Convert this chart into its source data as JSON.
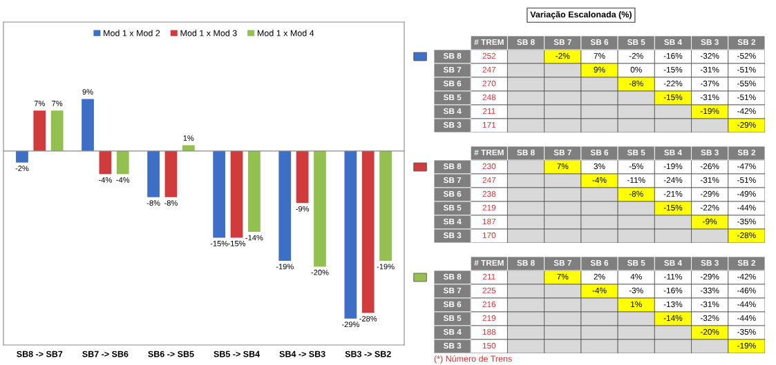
{
  "chart_data": [
    {
      "type": "bar",
      "categories": [
        "SB8 -> SB7",
        "SB7 -> SB6",
        "SB6 -> SB5",
        "SB5 -> SB4",
        "SB4 -> SB3",
        "SB3 -> SB2"
      ],
      "legend": "top",
      "series": [
        {
          "name": "Mod 1 x Mod 2",
          "color": "#3d6fc6",
          "values": [
            -2,
            9,
            -8,
            -15,
            -19,
            -29
          ],
          "value_labels": [
            "-2%",
            "9%",
            "-8%",
            "-15%",
            "-19%",
            "-29%"
          ]
        },
        {
          "name": "Mod 1 x Mod 3",
          "color": "#d13b3b",
          "values": [
            7,
            -4,
            -8,
            -15,
            -9,
            -28
          ],
          "value_labels": [
            "7%",
            "-4%",
            "-8%",
            "-15%",
            "-9%",
            "-28%"
          ]
        },
        {
          "name": "Mod 1 x Mod 4",
          "color": "#93c04f",
          "values": [
            7,
            -4,
            1,
            -14,
            -20,
            -19
          ],
          "value_labels": [
            "7%",
            "-4%",
            "1%",
            "-14%",
            "-20%",
            "-19%"
          ]
        }
      ]
    },
    {
      "type": "heatmap",
      "title": "Variação Escalonada (%)",
      "categories": [
        "# TREM",
        "SB 8",
        "SB 7",
        "SB 6",
        "SB 5",
        "SB 4",
        "SB 3",
        "SB 2"
      ],
      "y_categories": [
        "SB 8",
        "SB 7",
        "SB 6",
        "SB 5",
        "SB 4",
        "SB 3"
      ],
      "cells": [
        [
          252,
          null,
          -2,
          7,
          -2,
          -16,
          -32,
          -52
        ],
        [
          247,
          null,
          null,
          9,
          0,
          -15,
          -31,
          -51
        ],
        [
          270,
          null,
          null,
          null,
          -8,
          -22,
          -37,
          -55
        ],
        [
          248,
          null,
          null,
          null,
          null,
          -15,
          -31,
          -51
        ],
        [
          211,
          null,
          null,
          null,
          null,
          null,
          -19,
          -42
        ],
        [
          171,
          null,
          null,
          null,
          null,
          null,
          null,
          -29
        ]
      ],
      "cell_labels": [
        [
          "252",
          null,
          "-2%",
          "7%",
          "-2%",
          "-16%",
          "-32%",
          "-52%"
        ],
        [
          "247",
          null,
          null,
          "9%",
          "0%",
          "-15%",
          "-31%",
          "-51%"
        ],
        [
          "270",
          null,
          null,
          null,
          "-8%",
          "-22%",
          "-37%",
          "-55%"
        ],
        [
          "248",
          null,
          null,
          null,
          null,
          "-15%",
          "-31%",
          "-51%"
        ],
        [
          "211",
          null,
          null,
          null,
          null,
          null,
          "-19%",
          "-42%"
        ],
        [
          "171",
          null,
          null,
          null,
          null,
          null,
          null,
          "-29%"
        ]
      ]
    },
    {
      "type": "heatmap",
      "categories": [
        "# TREM",
        "SB 8",
        "SB 7",
        "SB 6",
        "SB 5",
        "SB 4",
        "SB 3",
        "SB 2"
      ],
      "y_categories": [
        "SB 8",
        "SB 7",
        "SB 6",
        "SB 5",
        "SB 4",
        "SB 3"
      ],
      "cells": [
        [
          230,
          null,
          7,
          3,
          -5,
          -19,
          -26,
          -47
        ],
        [
          247,
          null,
          null,
          -4,
          -11,
          -24,
          -31,
          -51
        ],
        [
          238,
          null,
          null,
          null,
          -8,
          -21,
          -29,
          -49
        ],
        [
          219,
          null,
          null,
          null,
          null,
          -15,
          -22,
          -44
        ],
        [
          187,
          null,
          null,
          null,
          null,
          null,
          -9,
          -35
        ],
        [
          170,
          null,
          null,
          null,
          null,
          null,
          null,
          -28
        ]
      ],
      "cell_labels": [
        [
          "230",
          null,
          "7%",
          "3%",
          "-5%",
          "-19%",
          "-26%",
          "-47%"
        ],
        [
          "247",
          null,
          null,
          "-4%",
          "-11%",
          "-24%",
          "-31%",
          "-51%"
        ],
        [
          "238",
          null,
          null,
          null,
          "-8%",
          "-21%",
          "-29%",
          "-49%"
        ],
        [
          "219",
          null,
          null,
          null,
          null,
          "-15%",
          "-22%",
          "-44%"
        ],
        [
          "187",
          null,
          null,
          null,
          null,
          null,
          "-9%",
          "-35%"
        ],
        [
          "170",
          null,
          null,
          null,
          null,
          null,
          null,
          "-28%"
        ]
      ]
    },
    {
      "type": "heatmap",
      "categories": [
        "# TREM",
        "SB 8",
        "SB 7",
        "SB 6",
        "SB 5",
        "SB 4",
        "SB 3",
        "SB 2"
      ],
      "y_categories": [
        "SB 8",
        "SB 7",
        "SB 6",
        "SB 5",
        "SB 4",
        "SB 3"
      ],
      "cells": [
        [
          211,
          null,
          7,
          2,
          4,
          -11,
          -29,
          -42
        ],
        [
          225,
          null,
          null,
          -4,
          -3,
          -16,
          -33,
          -46
        ],
        [
          216,
          null,
          null,
          null,
          1,
          -13,
          -31,
          -44
        ],
        [
          219,
          null,
          null,
          null,
          null,
          -14,
          -32,
          -44
        ],
        [
          188,
          null,
          null,
          null,
          null,
          null,
          -20,
          -35
        ],
        [
          150,
          null,
          null,
          null,
          null,
          null,
          null,
          -19
        ]
      ],
      "cell_labels": [
        [
          "211",
          null,
          "7%",
          "2%",
          "4%",
          "-11%",
          "-29%",
          "-42%"
        ],
        [
          "225",
          null,
          null,
          "-4%",
          "-3%",
          "-16%",
          "-33%",
          "-46%"
        ],
        [
          "216",
          null,
          null,
          null,
          "1%",
          "-13%",
          "-31%",
          "-44%"
        ],
        [
          "219",
          null,
          null,
          null,
          null,
          "-14%",
          "-32%",
          "-44%"
        ],
        [
          "188",
          null,
          null,
          null,
          null,
          null,
          "-20%",
          "-35%"
        ],
        [
          "150",
          null,
          null,
          null,
          null,
          null,
          null,
          "-19%"
        ]
      ],
      "annotations": [
        "(*) Número de Trens"
      ]
    }
  ]
}
